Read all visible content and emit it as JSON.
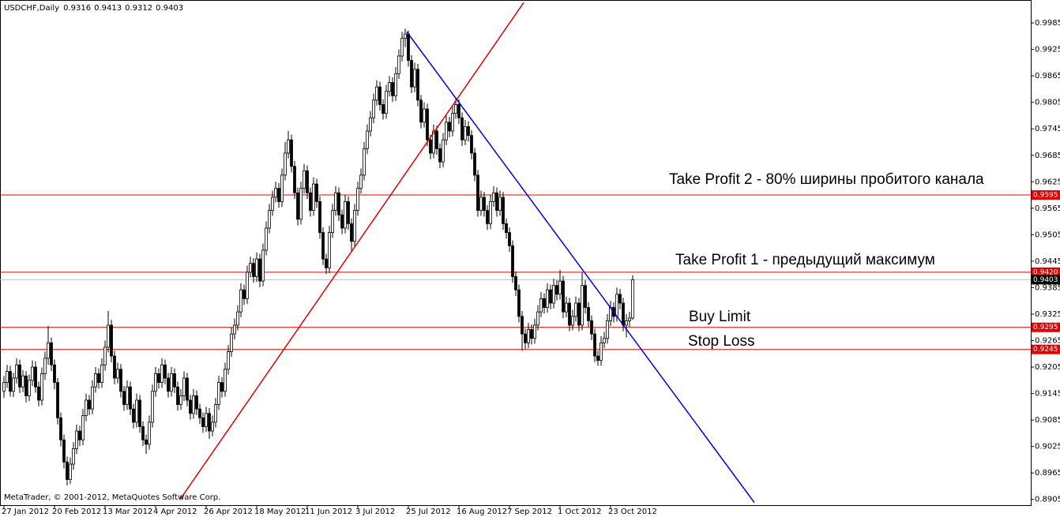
{
  "chart_data": {
    "type": "candlestick",
    "title": "USDCHF,Daily",
    "footer": "MetaTrader, © 2001-2012, MetaQuotes Software Corp.",
    "categories": [
      "27 Jan 2012",
      null,
      null,
      null,
      null,
      null,
      null,
      null,
      null,
      null,
      null,
      null,
      null,
      null,
      null,
      null,
      "20 Feb 2012",
      null,
      null,
      null,
      null,
      null,
      null,
      null,
      null,
      null,
      null,
      null,
      null,
      null,
      null,
      null,
      "13 Mar 2012",
      null,
      null,
      null,
      null,
      null,
      null,
      null,
      null,
      null,
      null,
      null,
      null,
      null,
      null,
      null,
      "4 Apr 2012",
      null,
      null,
      null,
      null,
      null,
      null,
      null,
      null,
      null,
      null,
      null,
      null,
      null,
      null,
      null,
      "26 Apr 2012",
      null,
      null,
      null,
      null,
      null,
      null,
      null,
      null,
      null,
      null,
      null,
      null,
      null,
      null,
      null,
      "18 May 2012",
      null,
      null,
      null,
      null,
      null,
      null,
      null,
      null,
      null,
      null,
      null,
      null,
      null,
      null,
      null,
      "11 Jun 2012",
      null,
      null,
      null,
      null,
      null,
      null,
      null,
      null,
      null,
      null,
      null,
      null,
      null,
      null,
      null,
      "3 Jul 2012",
      null,
      null,
      null,
      null,
      null,
      null,
      null,
      null,
      null,
      null,
      null,
      null,
      null,
      null,
      null,
      "25 Jul 2012",
      null,
      null,
      null,
      null,
      null,
      null,
      null,
      null,
      null,
      null,
      null,
      null,
      null,
      null,
      null,
      "16 Aug 2012",
      null,
      null,
      null,
      null,
      null,
      null,
      null,
      null,
      null,
      null,
      null,
      null,
      null,
      null,
      null,
      "7 Sep 2012",
      null,
      null,
      null,
      null,
      null,
      null,
      null,
      null,
      null,
      null,
      null,
      null,
      null,
      null,
      null,
      "1 Oct 2012",
      null,
      null,
      null,
      null,
      null,
      null,
      null,
      null,
      null,
      null,
      null,
      null,
      null,
      null,
      null,
      "23 Oct 2012",
      null,
      null,
      null,
      null,
      null,
      null,
      null
    ],
    "ohlc": [
      [
        0.915,
        0.9185,
        0.9135,
        0.917
      ],
      [
        0.917,
        0.921,
        0.9158,
        0.9195
      ],
      [
        0.9195,
        0.9208,
        0.9138,
        0.915
      ],
      [
        0.915,
        0.9192,
        0.9137,
        0.918
      ],
      [
        0.918,
        0.9225,
        0.9168,
        0.921
      ],
      [
        0.921,
        0.9222,
        0.9146,
        0.916
      ],
      [
        0.916,
        0.9198,
        0.9148,
        0.9185
      ],
      [
        0.9185,
        0.9196,
        0.9125,
        0.914
      ],
      [
        0.914,
        0.9188,
        0.9128,
        0.9175
      ],
      [
        0.9175,
        0.922,
        0.9162,
        0.9205
      ],
      [
        0.9205,
        0.9218,
        0.9147,
        0.916
      ],
      [
        0.916,
        0.9172,
        0.9116,
        0.913
      ],
      [
        0.913,
        0.9204,
        0.9118,
        0.919
      ],
      [
        0.919,
        0.924,
        0.9176,
        0.9225
      ],
      [
        0.9225,
        0.9298,
        0.921,
        0.926
      ],
      [
        0.926,
        0.9272,
        0.9196,
        0.921
      ],
      [
        0.921,
        0.9222,
        0.9155,
        0.917
      ],
      [
        0.917,
        0.918,
        0.9075,
        0.909
      ],
      [
        0.909,
        0.9102,
        0.9025,
        0.904
      ],
      [
        0.904,
        0.9052,
        0.8975,
        0.899
      ],
      [
        0.899,
        0.9002,
        0.8937,
        0.895
      ],
      [
        0.895,
        0.9,
        0.894,
        0.8985
      ],
      [
        0.8985,
        0.9035,
        0.8972,
        0.902
      ],
      [
        0.902,
        0.9075,
        0.9008,
        0.906
      ],
      [
        0.906,
        0.9072,
        0.9026,
        0.904
      ],
      [
        0.904,
        0.911,
        0.9028,
        0.9095
      ],
      [
        0.9095,
        0.9145,
        0.9082,
        0.913
      ],
      [
        0.913,
        0.9142,
        0.9096,
        0.911
      ],
      [
        0.911,
        0.9175,
        0.9098,
        0.916
      ],
      [
        0.916,
        0.9205,
        0.9147,
        0.919
      ],
      [
        0.919,
        0.9202,
        0.9156,
        0.917
      ],
      [
        0.917,
        0.9225,
        0.9158,
        0.921
      ],
      [
        0.921,
        0.9265,
        0.9197,
        0.925
      ],
      [
        0.925,
        0.9332,
        0.9238,
        0.93
      ],
      [
        0.93,
        0.9312,
        0.9216,
        0.923
      ],
      [
        0.923,
        0.9242,
        0.9166,
        0.918
      ],
      [
        0.918,
        0.9215,
        0.9168,
        0.92
      ],
      [
        0.92,
        0.9212,
        0.9136,
        0.915
      ],
      [
        0.915,
        0.9162,
        0.9106,
        0.912
      ],
      [
        0.912,
        0.9175,
        0.9108,
        0.916
      ],
      [
        0.916,
        0.9172,
        0.9096,
        0.911
      ],
      [
        0.911,
        0.9122,
        0.9066,
        0.908
      ],
      [
        0.908,
        0.9145,
        0.9068,
        0.913
      ],
      [
        0.913,
        0.9142,
        0.9056,
        0.907
      ],
      [
        0.907,
        0.9082,
        0.9026,
        0.904
      ],
      [
        0.904,
        0.9052,
        0.9008,
        0.903
      ],
      [
        0.903,
        0.9095,
        0.9018,
        0.908
      ],
      [
        0.908,
        0.9165,
        0.9068,
        0.915
      ],
      [
        0.915,
        0.9205,
        0.9138,
        0.919
      ],
      [
        0.919,
        0.9202,
        0.9156,
        0.917
      ],
      [
        0.917,
        0.9225,
        0.9158,
        0.921
      ],
      [
        0.921,
        0.9222,
        0.9166,
        0.918
      ],
      [
        0.918,
        0.9192,
        0.9136,
        0.915
      ],
      [
        0.915,
        0.9205,
        0.9138,
        0.919
      ],
      [
        0.919,
        0.9202,
        0.9146,
        0.916
      ],
      [
        0.916,
        0.9172,
        0.9106,
        0.912
      ],
      [
        0.912,
        0.9155,
        0.9108,
        0.914
      ],
      [
        0.914,
        0.9195,
        0.9128,
        0.918
      ],
      [
        0.918,
        0.9192,
        0.9116,
        0.913
      ],
      [
        0.913,
        0.9142,
        0.9086,
        0.91
      ],
      [
        0.91,
        0.9155,
        0.9088,
        0.914
      ],
      [
        0.914,
        0.9152,
        0.9096,
        0.911
      ],
      [
        0.911,
        0.9122,
        0.9076,
        0.909
      ],
      [
        0.909,
        0.9102,
        0.9056,
        0.907
      ],
      [
        0.907,
        0.9115,
        0.9058,
        0.91
      ],
      [
        0.91,
        0.9112,
        0.9042,
        0.906
      ],
      [
        0.906,
        0.9095,
        0.9048,
        0.908
      ],
      [
        0.908,
        0.9135,
        0.9068,
        0.912
      ],
      [
        0.912,
        0.9185,
        0.9108,
        0.917
      ],
      [
        0.917,
        0.9182,
        0.9136,
        0.915
      ],
      [
        0.915,
        0.9215,
        0.9138,
        0.92
      ],
      [
        0.92,
        0.9255,
        0.9188,
        0.924
      ],
      [
        0.924,
        0.9295,
        0.9228,
        0.928
      ],
      [
        0.928,
        0.9315,
        0.9268,
        0.93
      ],
      [
        0.93,
        0.9345,
        0.9288,
        0.933
      ],
      [
        0.933,
        0.9395,
        0.9318,
        0.938
      ],
      [
        0.938,
        0.9392,
        0.9346,
        0.936
      ],
      [
        0.936,
        0.9435,
        0.9348,
        0.942
      ],
      [
        0.942,
        0.9455,
        0.9408,
        0.944
      ],
      [
        0.944,
        0.9452,
        0.9396,
        0.941
      ],
      [
        0.941,
        0.9465,
        0.9398,
        0.945
      ],
      [
        0.945,
        0.9462,
        0.9386,
        0.94
      ],
      [
        0.94,
        0.9485,
        0.9388,
        0.947
      ],
      [
        0.947,
        0.9535,
        0.9458,
        0.952
      ],
      [
        0.952,
        0.9575,
        0.9508,
        0.956
      ],
      [
        0.956,
        0.9605,
        0.9548,
        0.959
      ],
      [
        0.959,
        0.9625,
        0.9578,
        0.961
      ],
      [
        0.961,
        0.9622,
        0.9566,
        0.958
      ],
      [
        0.958,
        0.9655,
        0.9568,
        0.964
      ],
      [
        0.964,
        0.9715,
        0.9628,
        0.969
      ],
      [
        0.969,
        0.974,
        0.9678,
        0.972
      ],
      [
        0.972,
        0.9732,
        0.9646,
        0.966
      ],
      [
        0.966,
        0.9672,
        0.9586,
        0.96
      ],
      [
        0.96,
        0.9612,
        0.9526,
        0.954
      ],
      [
        0.954,
        0.9625,
        0.9528,
        0.961
      ],
      [
        0.961,
        0.9665,
        0.9598,
        0.965
      ],
      [
        0.965,
        0.9662,
        0.9586,
        0.96
      ],
      [
        0.96,
        0.9612,
        0.9546,
        0.956
      ],
      [
        0.956,
        0.9635,
        0.9548,
        0.962
      ],
      [
        0.962,
        0.9632,
        0.9566,
        0.958
      ],
      [
        0.958,
        0.9592,
        0.9496,
        0.951
      ],
      [
        0.951,
        0.9522,
        0.9436,
        0.945
      ],
      [
        0.945,
        0.9462,
        0.9416,
        0.943
      ],
      [
        0.943,
        0.9525,
        0.9418,
        0.951
      ],
      [
        0.951,
        0.9575,
        0.9498,
        0.956
      ],
      [
        0.956,
        0.9615,
        0.9548,
        0.96
      ],
      [
        0.96,
        0.9612,
        0.9536,
        0.955
      ],
      [
        0.955,
        0.9562,
        0.9506,
        0.952
      ],
      [
        0.952,
        0.9595,
        0.9508,
        0.958
      ],
      [
        0.958,
        0.9592,
        0.9516,
        0.953
      ],
      [
        0.953,
        0.9542,
        0.9466,
        0.949
      ],
      [
        0.949,
        0.9575,
        0.9478,
        0.956
      ],
      [
        0.956,
        0.9625,
        0.9548,
        0.961
      ],
      [
        0.961,
        0.9655,
        0.9598,
        0.964
      ],
      [
        0.964,
        0.9715,
        0.9628,
        0.97
      ],
      [
        0.97,
        0.9755,
        0.9688,
        0.974
      ],
      [
        0.974,
        0.9785,
        0.9728,
        0.977
      ],
      [
        0.977,
        0.9825,
        0.9758,
        0.981
      ],
      [
        0.981,
        0.9855,
        0.9798,
        0.984
      ],
      [
        0.984,
        0.9852,
        0.9786,
        0.98
      ],
      [
        0.98,
        0.9812,
        0.9766,
        0.978
      ],
      [
        0.978,
        0.9845,
        0.9768,
        0.983
      ],
      [
        0.983,
        0.9865,
        0.9818,
        0.985
      ],
      [
        0.985,
        0.9862,
        0.9806,
        0.982
      ],
      [
        0.982,
        0.9885,
        0.9808,
        0.987
      ],
      [
        0.987,
        0.9925,
        0.9858,
        0.991
      ],
      [
        0.991,
        0.9965,
        0.9898,
        0.995
      ],
      [
        0.995,
        0.9972,
        0.993,
        0.996
      ],
      [
        0.996,
        0.9968,
        0.9886,
        0.99
      ],
      [
        0.99,
        0.9912,
        0.9826,
        0.984
      ],
      [
        0.984,
        0.9895,
        0.9828,
        0.988
      ],
      [
        0.988,
        0.9892,
        0.9796,
        0.981
      ],
      [
        0.981,
        0.9822,
        0.9746,
        0.976
      ],
      [
        0.976,
        0.9805,
        0.9748,
        0.979
      ],
      [
        0.979,
        0.9802,
        0.9706,
        0.972
      ],
      [
        0.972,
        0.9732,
        0.9676,
        0.969
      ],
      [
        0.969,
        0.9755,
        0.9678,
        0.974
      ],
      [
        0.974,
        0.9752,
        0.9686,
        0.97
      ],
      [
        0.97,
        0.9712,
        0.9656,
        0.967
      ],
      [
        0.967,
        0.9735,
        0.9658,
        0.972
      ],
      [
        0.972,
        0.9775,
        0.9708,
        0.976
      ],
      [
        0.976,
        0.9772,
        0.9726,
        0.974
      ],
      [
        0.974,
        0.9795,
        0.9728,
        0.978
      ],
      [
        0.978,
        0.9815,
        0.9768,
        0.98
      ],
      [
        0.98,
        0.9812,
        0.9756,
        0.977
      ],
      [
        0.977,
        0.9782,
        0.9706,
        0.972
      ],
      [
        0.972,
        0.9765,
        0.9708,
        0.975
      ],
      [
        0.975,
        0.9762,
        0.9716,
        0.973
      ],
      [
        0.973,
        0.9742,
        0.9676,
        0.969
      ],
      [
        0.969,
        0.9702,
        0.9626,
        0.964
      ],
      [
        0.964,
        0.9652,
        0.9546,
        0.956
      ],
      [
        0.956,
        0.9605,
        0.9548,
        0.959
      ],
      [
        0.959,
        0.9602,
        0.9546,
        0.956
      ],
      [
        0.956,
        0.9572,
        0.9516,
        0.953
      ],
      [
        0.953,
        0.9595,
        0.9518,
        0.958
      ],
      [
        0.958,
        0.9615,
        0.9568,
        0.96
      ],
      [
        0.96,
        0.9612,
        0.9546,
        0.956
      ],
      [
        0.956,
        0.9605,
        0.9548,
        0.959
      ],
      [
        0.959,
        0.9602,
        0.9516,
        0.953
      ],
      [
        0.953,
        0.9542,
        0.9496,
        0.951
      ],
      [
        0.951,
        0.9522,
        0.9466,
        0.948
      ],
      [
        0.948,
        0.9492,
        0.9396,
        0.941
      ],
      [
        0.941,
        0.9422,
        0.9366,
        0.938
      ],
      [
        0.938,
        0.9392,
        0.9306,
        0.932
      ],
      [
        0.932,
        0.9332,
        0.9242,
        0.928
      ],
      [
        0.928,
        0.9292,
        0.9246,
        0.926
      ],
      [
        0.926,
        0.9305,
        0.9248,
        0.929
      ],
      [
        0.929,
        0.9302,
        0.9256,
        0.927
      ],
      [
        0.927,
        0.9315,
        0.9258,
        0.93
      ],
      [
        0.93,
        0.9345,
        0.9288,
        0.933
      ],
      [
        0.933,
        0.9375,
        0.9318,
        0.936
      ],
      [
        0.936,
        0.9372,
        0.9326,
        0.934
      ],
      [
        0.934,
        0.9395,
        0.9328,
        0.938
      ],
      [
        0.938,
        0.9392,
        0.9336,
        0.935
      ],
      [
        0.935,
        0.9405,
        0.9338,
        0.939
      ],
      [
        0.939,
        0.9402,
        0.9356,
        0.937
      ],
      [
        0.937,
        0.9425,
        0.9358,
        0.94
      ],
      [
        0.94,
        0.9412,
        0.9316,
        0.933
      ],
      [
        0.933,
        0.9365,
        0.9318,
        0.935
      ],
      [
        0.935,
        0.9362,
        0.9286,
        0.93
      ],
      [
        0.93,
        0.9335,
        0.9288,
        0.932
      ],
      [
        0.932,
        0.9365,
        0.9308,
        0.935
      ],
      [
        0.935,
        0.9362,
        0.9286,
        0.93
      ],
      [
        0.93,
        0.942,
        0.9288,
        0.939
      ],
      [
        0.939,
        0.9402,
        0.9326,
        0.934
      ],
      [
        0.934,
        0.9352,
        0.9296,
        0.931
      ],
      [
        0.931,
        0.9322,
        0.9266,
        0.928
      ],
      [
        0.928,
        0.9292,
        0.9216,
        0.923
      ],
      [
        0.923,
        0.9242,
        0.9208,
        0.922
      ],
      [
        0.922,
        0.9275,
        0.9208,
        0.926
      ],
      [
        0.926,
        0.9285,
        0.9248,
        0.927
      ],
      [
        0.927,
        0.9325,
        0.9258,
        0.931
      ],
      [
        0.931,
        0.9355,
        0.9298,
        0.934
      ],
      [
        0.934,
        0.9352,
        0.9306,
        0.932
      ],
      [
        0.932,
        0.9385,
        0.9308,
        0.937
      ],
      [
        0.937,
        0.9382,
        0.9336,
        0.935
      ],
      [
        0.935,
        0.9362,
        0.9286,
        0.93
      ],
      [
        0.93,
        0.9325,
        0.9272,
        0.931
      ],
      [
        0.931,
        0.933,
        0.9296,
        0.9316
      ],
      [
        0.9316,
        0.9413,
        0.9312,
        0.9403
      ]
    ],
    "ylim": [
      0.8892,
      1.0037
    ],
    "yticks": [
      0.9985,
      0.9925,
      0.9865,
      0.9805,
      0.9745,
      0.9685,
      0.9625,
      0.9565,
      0.9505,
      0.9445,
      0.9385,
      0.9325,
      0.9265,
      0.9205,
      0.9145,
      0.9085,
      0.9025,
      0.8965,
      0.8905
    ],
    "levels": [
      {
        "value": 0.9595,
        "color": "#e00000"
      },
      {
        "value": {
          "value": 0.942,
          "label": "0.9420"
        },
        "color": "#e00000"
      },
      {
        "value": 0.9295,
        "color": "#e00000"
      },
      {
        "value": 0.9245,
        "color": "#e00000"
      }
    ],
    "current_price": 0.9403,
    "trendlines": [
      {
        "color": "#e00000",
        "x": [
          55.75,
          164.5
        ],
        "y": [
          0.8905,
          1.0031
        ]
      },
      {
        "color": "#0000e0",
        "x": [
          127.5,
          237.5
        ],
        "y": [
          0.9965,
          0.8898
        ]
      }
    ],
    "annotations": [
      "Take Profit 2 - 80% ширины пробитого канала",
      "Take Profit 1 - предыдущий максимум",
      "Buy Limit",
      "Stop Loss"
    ]
  }
}
